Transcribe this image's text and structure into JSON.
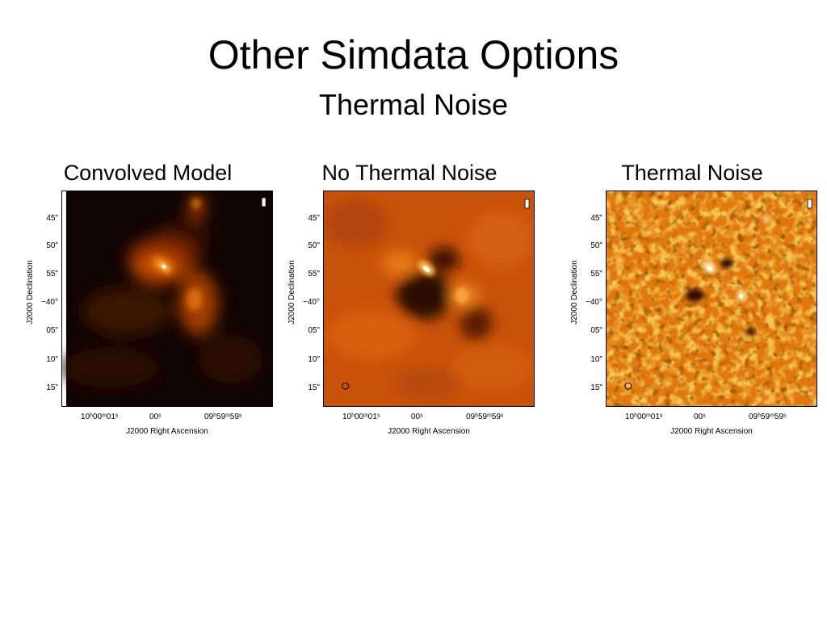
{
  "slide": {
    "title": "Other Simdata Options",
    "subtitle": "Thermal Noise"
  },
  "axes": {
    "ylabel": "J2000 Declination",
    "xlabel": "J2000 Right Ascension",
    "yticks": [
      "45\"",
      "50\"",
      "55\"",
      "−40°",
      "05\"",
      "10\"",
      "15\""
    ],
    "xticks": [
      "10ʰ00ᵐ01ˢ",
      "00ˢ",
      "09ʰ59ᵐ59ˢ"
    ]
  },
  "panels": [
    {
      "title": "Convolved Model",
      "style": "smooth-emission",
      "beam_marker": false
    },
    {
      "title": "No Thermal Noise",
      "style": "interferometric-residual",
      "beam_marker": true
    },
    {
      "title": "Thermal Noise",
      "style": "noisy-speckle",
      "beam_marker": true
    }
  ],
  "colors": {
    "colormap": [
      "#000000",
      "#5a1a00",
      "#c24a00",
      "#f08a18",
      "#ffd27a",
      "#ffffff"
    ]
  }
}
